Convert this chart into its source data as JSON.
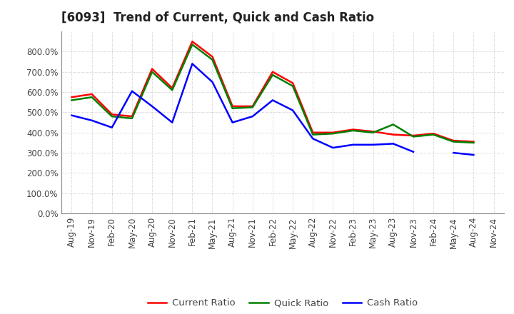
{
  "title": "[6093]  Trend of Current, Quick and Cash Ratio",
  "x_labels": [
    "Aug-19",
    "Nov-19",
    "Feb-20",
    "May-20",
    "Aug-20",
    "Nov-20",
    "Feb-21",
    "May-21",
    "Aug-21",
    "Nov-21",
    "Feb-22",
    "May-22",
    "Aug-22",
    "Nov-22",
    "Feb-23",
    "May-23",
    "Aug-23",
    "Nov-23",
    "Feb-24",
    "May-24",
    "Aug-24",
    "Nov-24"
  ],
  "current_ratio": [
    575,
    590,
    490,
    480,
    715,
    620,
    850,
    775,
    530,
    530,
    700,
    645,
    400,
    400,
    415,
    405,
    390,
    385,
    395,
    360,
    355,
    null
  ],
  "quick_ratio": [
    560,
    575,
    480,
    470,
    700,
    610,
    835,
    760,
    520,
    525,
    685,
    630,
    390,
    395,
    410,
    400,
    440,
    380,
    390,
    355,
    350,
    null
  ],
  "cash_ratio": [
    485,
    460,
    425,
    605,
    530,
    450,
    740,
    650,
    450,
    480,
    560,
    510,
    370,
    325,
    340,
    340,
    345,
    305,
    null,
    300,
    290,
    null
  ],
  "current_color": "#ff0000",
  "quick_color": "#008000",
  "cash_color": "#0000ff",
  "ylim_max": 900,
  "yticks": [
    0,
    100,
    200,
    300,
    400,
    500,
    600,
    700,
    800
  ],
  "background_color": "#ffffff",
  "grid_color": "#bbbbbb",
  "title_fontsize": 12,
  "tick_fontsize": 8.5,
  "legend_labels": [
    "Current Ratio",
    "Quick Ratio",
    "Cash Ratio"
  ],
  "line_width": 1.8
}
